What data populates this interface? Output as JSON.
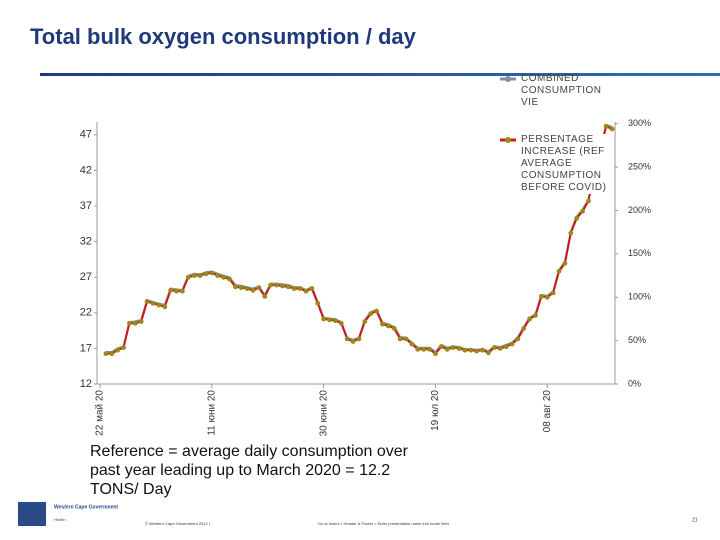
{
  "title": "Total bulk oxygen consumption / day",
  "chart_data": {
    "type": "line",
    "categories": [
      "22 май 20",
      null,
      null,
      null,
      null,
      null,
      null,
      null,
      null,
      null,
      null,
      null,
      null,
      null,
      null,
      null,
      null,
      null,
      null,
      "11 юни 20",
      null,
      null,
      null,
      null,
      null,
      null,
      null,
      null,
      null,
      null,
      null,
      null,
      null,
      null,
      null,
      null,
      null,
      null,
      "30 юни 20",
      null,
      null,
      null,
      null,
      null,
      null,
      null,
      null,
      null,
      null,
      null,
      null,
      null,
      null,
      null,
      null,
      null,
      null,
      "19 юл 20",
      null,
      null,
      null,
      null,
      null,
      null,
      null,
      null,
      null,
      null,
      null,
      null,
      null,
      null,
      null,
      null,
      null,
      null,
      "08 авг 20",
      null,
      null,
      null,
      null,
      null,
      null,
      null,
      null,
      null,
      null,
      null
    ],
    "series": [
      {
        "name": "COMBINED CONSUMPTION VIE",
        "color": "#7f8fa6",
        "values": [
          null,
          16.5,
          16.5,
          17,
          17.3,
          20.7,
          20.8,
          21,
          23.8,
          23.5,
          23.3,
          23.1,
          25.4,
          25.3,
          25.2,
          27.2,
          27.5,
          27.4,
          27.7,
          27.8,
          27.5,
          27.2,
          27,
          25.9,
          25.8,
          25.6,
          25.4,
          25.7,
          24.5,
          26.1,
          26.1,
          26,
          25.9,
          25.6,
          25.6,
          25.2,
          25.6,
          23.5,
          21.3,
          21.2,
          21.1,
          20.7,
          18.5,
          18.2,
          18.5,
          21,
          22.1,
          22.4,
          20.6,
          20.4,
          20,
          18.6,
          18.5,
          17.8,
          17.1,
          17.1,
          17.1,
          16.5,
          17.5,
          17.1,
          17.3,
          17.2,
          16.9,
          16.9,
          16.8,
          16.9,
          16.6,
          17.3,
          17.2,
          17.5,
          17.8,
          18.6,
          20,
          21.3,
          21.8,
          24.5,
          24.4,
          25,
          28,
          29.2,
          33.4,
          35.5,
          36.5,
          37.9,
          42.1,
          44.9,
          48.4,
          48.1
        ]
      },
      {
        "name": "PERSENTAGE INCREASE (REF AVERAGE CONSUMPTION BEFORE COVID)",
        "color": "#d01818",
        "marker_color": "#9a8a10",
        "axis": "y2",
        "values": [
          null,
          35,
          35,
          39,
          42,
          70,
          70,
          72,
          95,
          93,
          91,
          89,
          108,
          107,
          107,
          123,
          125,
          125,
          127,
          128,
          125,
          123,
          121,
          112,
          111,
          110,
          108,
          111,
          101,
          114,
          114,
          113,
          112,
          110,
          110,
          107,
          110,
          93,
          75,
          74,
          73,
          70,
          52,
          49,
          52,
          72,
          81,
          84,
          69,
          67,
          64,
          52,
          52,
          46,
          40,
          40,
          40,
          35,
          43,
          40,
          42,
          41,
          39,
          39,
          38,
          39,
          36,
          42,
          41,
          43,
          46,
          52,
          64,
          75,
          79,
          101,
          100,
          105,
          130,
          139,
          174,
          191,
          199,
          211,
          245,
          268,
          297,
          294
        ]
      }
    ],
    "ylim": [
      12,
      48.8
    ],
    "yticks": [
      12,
      17,
      22,
      27,
      32,
      37,
      42,
      47
    ],
    "y2lim": [
      0,
      302
    ],
    "y2ticks": [
      {
        "value": 0,
        "label": "0%"
      },
      {
        "value": 50,
        "label": "50%"
      },
      {
        "value": 100,
        "label": "100%"
      },
      {
        "value": 150,
        "label": "150%"
      },
      {
        "value": 200,
        "label": "200%"
      },
      {
        "value": 250,
        "label": "250%"
      },
      {
        "value": 300,
        "label": "300%"
      }
    ]
  },
  "note": "Reference = average daily consumption over past year leading up to March 2020 = 12.2 TONS/ Day",
  "logo": {
    "name": "Western Cape Government",
    "sub": "Health"
  },
  "footer": {
    "copyright": "© Western Cape Government 2012 |",
    "placeholder": "Go to Insert > Header & Footer > Enter presentation name into footer field",
    "page": "21"
  }
}
